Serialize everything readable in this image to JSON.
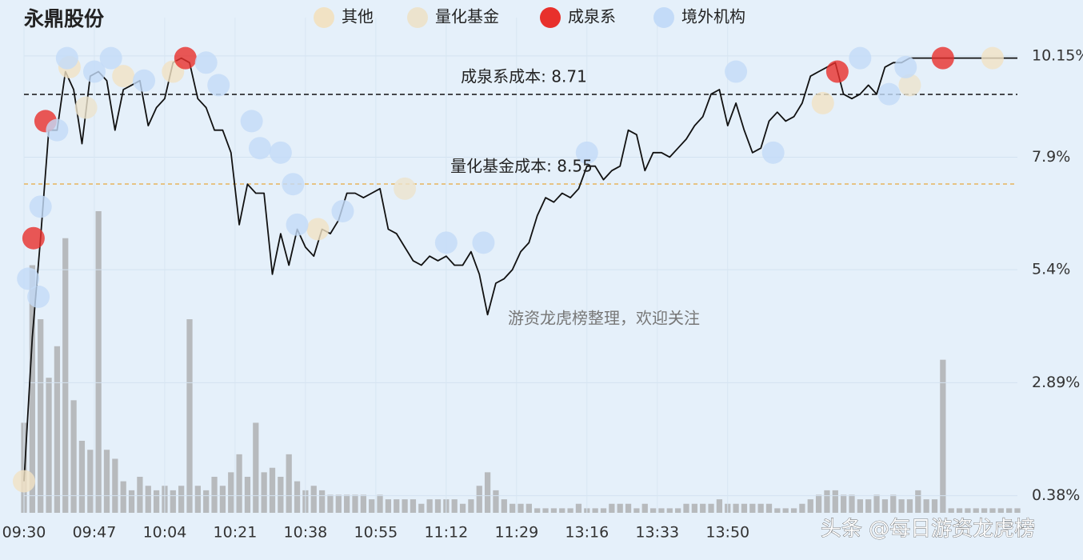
{
  "chart_data": {
    "type": "line",
    "title": "永鼎股份",
    "xlim": [
      0,
      240
    ],
    "xticks": [
      {
        "value": 0,
        "label": "09:30"
      },
      {
        "value": 17,
        "label": "09:47"
      },
      {
        "value": 34,
        "label": "10:04"
      },
      {
        "value": 51,
        "label": "10:21"
      },
      {
        "value": 68,
        "label": "10:38"
      },
      {
        "value": 85,
        "label": "10:55"
      },
      {
        "value": 102,
        "label": "11:12"
      },
      {
        "value": 119,
        "label": "11:29"
      },
      {
        "value": 136,
        "label": "13:16"
      },
      {
        "value": 153,
        "label": "13:33"
      },
      {
        "value": 170,
        "label": "13:50"
      }
    ],
    "ylim": [
      0,
      11
    ],
    "yticks": [
      {
        "value": 0.38,
        "label": "0.38%"
      },
      {
        "value": 2.89,
        "label": "2.89%"
      },
      {
        "value": 5.4,
        "label": "5.4%"
      },
      {
        "value": 7.9,
        "label": "7.9%"
      },
      {
        "value": 10.15,
        "label": "10.15%"
      }
    ],
    "grid": true,
    "x": [
      0,
      2,
      4,
      6,
      8,
      10,
      12,
      14,
      16,
      18,
      20,
      22,
      24,
      26,
      28,
      30,
      32,
      34,
      36,
      38,
      40,
      42,
      44,
      46,
      48,
      50,
      52,
      54,
      56,
      58,
      60,
      62,
      64,
      66,
      68,
      70,
      72,
      74,
      76,
      78,
      80,
      82,
      84,
      86,
      88,
      90,
      92,
      94,
      96,
      98,
      100,
      102,
      104,
      106,
      108,
      110,
      112,
      114,
      116,
      118,
      120,
      122,
      124,
      126,
      128,
      130,
      132,
      134,
      136,
      138,
      140,
      142,
      144,
      146,
      148,
      150,
      152,
      154,
      156,
      158,
      160,
      162,
      164,
      166,
      168,
      170,
      172,
      174,
      176,
      178,
      180,
      182,
      184,
      186,
      188,
      190,
      192,
      194,
      196,
      198,
      200,
      202,
      204,
      206,
      208,
      210,
      212,
      214,
      216,
      218,
      220,
      222,
      224,
      226,
      228,
      230,
      232,
      234,
      236,
      238,
      240
    ],
    "price": {
      "color": "#111111",
      "values": [
        0.7,
        3.9,
        6.1,
        8.5,
        8.5,
        9.8,
        9.4,
        8.2,
        9.7,
        9.8,
        9.6,
        8.5,
        9.4,
        9.5,
        9.6,
        8.6,
        9.0,
        9.2,
        10.0,
        10.1,
        10.0,
        9.2,
        9.0,
        8.5,
        8.5,
        8.0,
        6.4,
        7.3,
        7.1,
        7.1,
        5.3,
        6.2,
        5.5,
        6.3,
        5.9,
        5.7,
        6.3,
        6.2,
        6.5,
        7.1,
        7.1,
        7.0,
        7.1,
        7.2,
        6.3,
        6.2,
        5.9,
        5.6,
        5.5,
        5.7,
        5.6,
        5.7,
        5.5,
        5.5,
        5.8,
        5.3,
        4.4,
        5.1,
        5.2,
        5.4,
        5.8,
        6.0,
        6.6,
        7.0,
        6.9,
        7.1,
        7.0,
        7.2,
        7.7,
        7.7,
        7.4,
        7.6,
        7.7,
        8.5,
        8.4,
        7.6,
        8.0,
        8.0,
        7.9,
        8.1,
        8.3,
        8.6,
        8.8,
        9.3,
        9.4,
        8.6,
        9.1,
        8.5,
        8.0,
        8.1,
        8.7,
        8.9,
        8.7,
        8.8,
        9.1,
        9.7,
        9.8,
        9.9,
        10.0,
        9.3,
        9.2,
        9.3,
        9.5,
        9.3,
        9.9,
        10.0,
        10.0,
        10.1,
        10.1,
        10.1,
        10.1,
        10.1,
        10.1,
        10.1,
        10.1,
        10.1,
        10.1,
        10.1,
        10.1,
        10.1,
        10.1
      ]
    },
    "volume": {
      "color": "#b7babd",
      "values": [
        2.0,
        5.5,
        4.3,
        3.0,
        3.7,
        6.1,
        2.5,
        1.6,
        1.4,
        6.7,
        1.4,
        1.2,
        0.7,
        0.5,
        0.8,
        0.6,
        0.5,
        0.6,
        0.5,
        0.6,
        4.3,
        0.6,
        0.5,
        0.8,
        0.6,
        0.9,
        1.3,
        0.8,
        2.0,
        0.9,
        1.0,
        0.8,
        1.3,
        0.7,
        0.5,
        0.6,
        0.5,
        0.4,
        0.4,
        0.4,
        0.4,
        0.4,
        0.3,
        0.4,
        0.3,
        0.3,
        0.3,
        0.3,
        0.2,
        0.3,
        0.3,
        0.3,
        0.3,
        0.2,
        0.3,
        0.6,
        0.9,
        0.5,
        0.3,
        0.2,
        0.2,
        0.2,
        0.1,
        0.1,
        0.1,
        0.1,
        0.1,
        0.2,
        0.1,
        0.1,
        0.1,
        0.2,
        0.2,
        0.2,
        0.1,
        0.2,
        0.1,
        0.1,
        0.1,
        0.1,
        0.2,
        0.2,
        0.2,
        0.2,
        0.3,
        0.2,
        0.2,
        0.2,
        0.2,
        0.2,
        0.2,
        0.1,
        0.1,
        0.1,
        0.2,
        0.3,
        0.4,
        0.5,
        0.5,
        0.4,
        0.4,
        0.3,
        0.3,
        0.4,
        0.3,
        0.4,
        0.3,
        0.3,
        0.5,
        0.3,
        0.3,
        3.4,
        0.1,
        0.1,
        0.1,
        0.1,
        0.1,
        0.1,
        0.1,
        0.1,
        0.1
      ]
    },
    "series": [
      {
        "name": "其他",
        "color": "#f1e2c4",
        "x": [
          0,
          11,
          24,
          36,
          71,
          193,
          234
        ],
        "values": [
          0.7,
          9.9,
          9.7,
          9.8,
          6.3,
          9.1,
          10.1
        ]
      },
      {
        "name": "量化基金",
        "color": "#ece3cd",
        "x": [
          15,
          92,
          214
        ],
        "values": [
          9.0,
          7.2,
          9.5
        ]
      },
      {
        "name": "成泉系",
        "color": "#e8302c",
        "x": [
          2.3,
          5.2,
          39,
          196.5,
          222
        ],
        "values": [
          6.1,
          8.7,
          10.1,
          9.8,
          10.1
        ]
      },
      {
        "name": "境外机构",
        "color": "#c3dbf8",
        "x": [
          1,
          3.5,
          4,
          8,
          10.4,
          17,
          21,
          29,
          44,
          47,
          55,
          57,
          62,
          65,
          66,
          77,
          102,
          111,
          136,
          172,
          181,
          202,
          209,
          213
        ],
        "values": [
          5.2,
          4.8,
          6.8,
          8.5,
          10.1,
          9.8,
          10.1,
          9.6,
          10.0,
          9.5,
          8.7,
          8.1,
          8.0,
          7.3,
          6.4,
          6.7,
          6.0,
          6.0,
          8.0,
          9.8,
          8.0,
          10.1,
          9.3,
          9.9
        ]
      }
    ],
    "annotations": [
      "成泉系成本: 8.71",
      "量化基金成本: 8.55"
    ],
    "watermark": "游资龙虎榜整理，欢迎关注",
    "credit": "头条 @每日游资龙虎榜"
  }
}
